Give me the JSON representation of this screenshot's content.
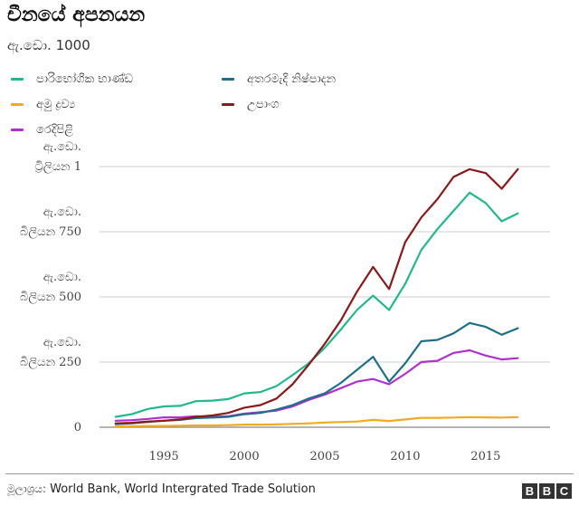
{
  "title": "චීනයේ අපනයන",
  "subtitle": "ඇ.ඩො. 1000",
  "colors": {
    "consumer": "#22b98a",
    "machinery": "#1f6f8b",
    "raw": "#f0ab1e",
    "components": "#8a1a1a",
    "textiles": "#b12fd0",
    "grid": "#cfcfcf",
    "baseline": "#888888"
  },
  "chart_data": {
    "type": "line",
    "title": "චීනයේ අපනයන",
    "ylabel": "ඇ.ඩො. 1000",
    "xlabel": "",
    "x": [
      1992,
      1993,
      1994,
      1995,
      1996,
      1997,
      1998,
      1999,
      2000,
      2001,
      2002,
      2003,
      2004,
      2005,
      2006,
      2007,
      2008,
      2009,
      2010,
      2011,
      2012,
      2013,
      2014,
      2015,
      2016,
      2017
    ],
    "xlim": [
      1991,
      2019
    ],
    "xticks": [
      1995,
      2000,
      2005,
      2010,
      2015
    ],
    "ylim": [
      0,
      1000
    ],
    "yticks": [
      {
        "value": 0,
        "lines": [
          "0"
        ]
      },
      {
        "value": 250,
        "lines": [
          "ඇ.ඩො.",
          "බිලියන 250"
        ]
      },
      {
        "value": 500,
        "lines": [
          "ඇ.ඩො.",
          "බිලියන 500"
        ]
      },
      {
        "value": 750,
        "lines": [
          "ඇ.ඩො.",
          "බිලියන 750"
        ]
      },
      {
        "value": 1000,
        "lines": [
          "ඇ.ඩො.",
          "ට්‍රිලියන 1"
        ]
      }
    ],
    "series": [
      {
        "key": "consumer",
        "name": "පාරිභෝගික භාණ්ඩ",
        "values": [
          40,
          50,
          70,
          80,
          82,
          100,
          102,
          108,
          130,
          135,
          158,
          200,
          245,
          305,
          375,
          450,
          505,
          450,
          550,
          680,
          760,
          830,
          900,
          860,
          790,
          820
        ]
      },
      {
        "key": "machinery",
        "name": "අතරමැදි නිෂ්පාදන",
        "values": [
          12,
          15,
          20,
          25,
          28,
          35,
          37,
          40,
          50,
          55,
          68,
          85,
          110,
          130,
          170,
          220,
          270,
          175,
          245,
          330,
          335,
          360,
          400,
          385,
          355,
          380
        ]
      },
      {
        "key": "raw",
        "name": "අමු ද්‍රව්‍ය",
        "values": [
          3,
          4,
          5,
          5,
          6,
          7,
          7,
          8,
          10,
          10,
          11,
          13,
          15,
          18,
          20,
          22,
          28,
          24,
          30,
          36,
          36,
          37,
          39,
          38,
          37,
          39
        ]
      },
      {
        "key": "components",
        "name": "උපාංග",
        "values": [
          15,
          17,
          22,
          25,
          30,
          40,
          45,
          55,
          75,
          85,
          110,
          165,
          240,
          320,
          410,
          520,
          615,
          530,
          710,
          805,
          875,
          960,
          990,
          975,
          915,
          990
        ]
      },
      {
        "key": "textiles",
        "name": "රෙදිපිළි",
        "values": [
          25,
          27,
          32,
          38,
          38,
          42,
          40,
          42,
          52,
          58,
          64,
          80,
          105,
          125,
          150,
          175,
          185,
          165,
          205,
          250,
          255,
          285,
          295,
          275,
          260,
          265
        ]
      }
    ]
  },
  "legend": [
    {
      "key": "consumer",
      "label": "පාරිභෝගික භාණ්ඩ"
    },
    {
      "key": "machinery",
      "label": "අතරමැදි නිෂ්පාදන"
    },
    {
      "key": "raw",
      "label": "අමු ද්‍රව්‍ය"
    },
    {
      "key": "components",
      "label": "උපාංග"
    },
    {
      "key": "textiles",
      "label": "රෙදිපිළි"
    }
  ],
  "footer": {
    "source_label": "මූලාශ්‍රය:",
    "source_text": "World Bank, World Intergrated Trade Solution",
    "logo": [
      "B",
      "B",
      "C"
    ]
  }
}
